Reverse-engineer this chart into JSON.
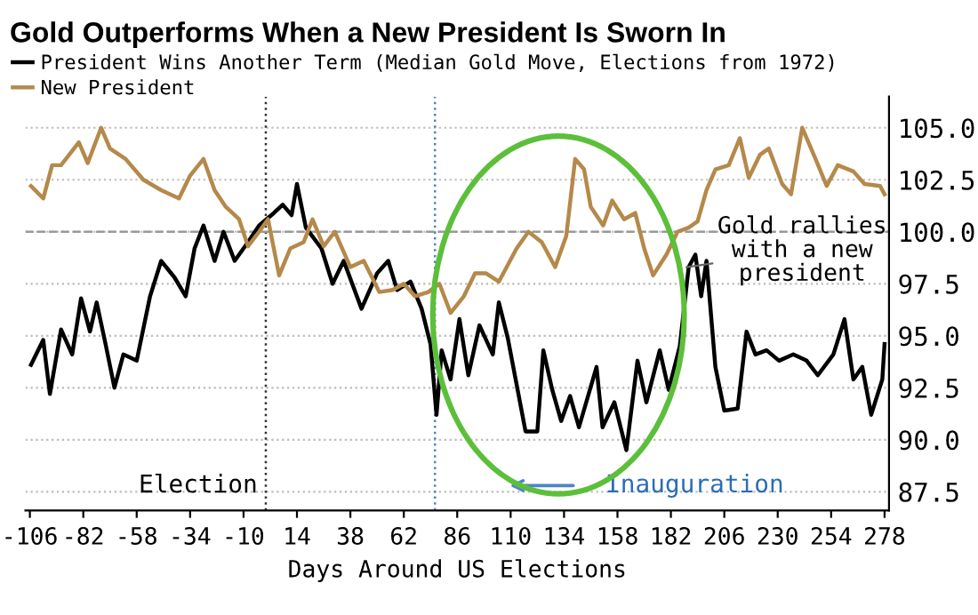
{
  "chart_data": {
    "type": "line",
    "title": "Gold Outperforms When a New President Is Sworn In",
    "xlabel": "Days Around US Elections",
    "xlim": [
      -108,
      280
    ],
    "xticks": [
      -106,
      -82,
      -58,
      -34,
      -10,
      14,
      38,
      62,
      86,
      110,
      134,
      158,
      182,
      206,
      230,
      254,
      278
    ],
    "ylim": [
      86.6,
      106.5
    ],
    "yticks": [
      {
        "value": 87.5,
        "label": "87.5"
      },
      {
        "value": 90,
        "label": "90.0"
      },
      {
        "value": 92.5,
        "label": "92.5"
      },
      {
        "value": 95,
        "label": "95.0"
      },
      {
        "value": 97.5,
        "label": "97.5"
      },
      {
        "value": 100,
        "label": "100.0"
      },
      {
        "value": 102.5,
        "label": "102.5"
      },
      {
        "value": 105,
        "label": "105.0"
      }
    ],
    "grid": "y",
    "legend": "top left",
    "marker": "none",
    "line_style": "solid",
    "series": [
      {
        "name": "President Wins Another Term (Median Gold Move, Elections from 1972)",
        "color": "#000000",
        "x": [
          -105.5,
          -100,
          -97,
          -92,
          -87,
          -83,
          -79,
          -76,
          -72,
          -68,
          -64,
          -58,
          -52,
          -47,
          -41,
          -36,
          -32,
          -28,
          -23,
          -19,
          -14,
          -8,
          -3,
          3.6,
          7.6,
          11.6,
          14,
          18,
          25,
          30,
          35,
          43,
          50,
          55,
          59,
          65,
          70,
          74,
          76.7,
          79,
          83,
          87,
          91,
          96,
          102,
          104.7,
          108.7,
          116.7,
          122,
          124.7,
          128.7,
          132.7,
          136.7,
          140.7,
          148.6,
          151.3,
          156.6,
          162,
          167,
          171,
          177,
          181,
          186,
          190,
          193,
          195.6,
          198,
          202,
          206,
          212,
          216,
          220,
          225,
          230.6,
          237,
          243,
          248,
          255,
          260,
          264,
          268,
          272,
          277,
          278
        ],
        "values": [
          93.6,
          94.8,
          92.2,
          95.3,
          94.1,
          96.8,
          95.2,
          96.6,
          94.6,
          92.5,
          94.1,
          93.8,
          96.9,
          98.6,
          97.8,
          96.9,
          99.2,
          100.3,
          98.6,
          100.0,
          98.6,
          99.5,
          100.3,
          100.9,
          101.3,
          100.8,
          102.3,
          100.2,
          99.2,
          97.5,
          98.6,
          96.3,
          98.0,
          98.6,
          97.2,
          97.6,
          96.3,
          94.6,
          91.2,
          94.3,
          92.9,
          95.8,
          93.1,
          95.5,
          94.1,
          96.6,
          94.9,
          90.4,
          90.4,
          94.3,
          92.4,
          90.9,
          92.1,
          90.6,
          93.5,
          90.6,
          91.8,
          89.5,
          93.8,
          91.8,
          94.3,
          92.4,
          94.5,
          98.3,
          98.9,
          96.9,
          98.6,
          93.5,
          91.4,
          91.5,
          95.2,
          94.1,
          94.3,
          93.8,
          94.1,
          93.8,
          93.1,
          94.1,
          95.8,
          92.9,
          93.5,
          91.2,
          92.9,
          94.6
        ]
      },
      {
        "name": "New President",
        "color": "#b5894a",
        "x": [
          -105.5,
          -100,
          -96,
          -92,
          -84,
          -80,
          -74,
          -70,
          -63,
          -55,
          -47,
          -39,
          -34,
          -28,
          -23,
          -18,
          -12,
          -8,
          -3,
          1,
          6,
          11,
          17,
          21,
          26,
          31,
          38,
          44,
          51,
          57,
          62,
          67,
          73,
          78,
          83,
          89,
          94,
          99,
          104.7,
          112.7,
          118,
          124,
          130,
          135,
          139,
          143,
          146,
          151.6,
          155.6,
          161,
          166,
          170,
          174,
          180,
          185,
          190,
          194,
          198,
          202,
          208,
          213,
          217,
          222,
          226,
          232,
          236,
          241,
          247,
          252,
          257,
          264,
          269,
          276,
          278
        ],
        "values": [
          102.2,
          101.6,
          103.2,
          103.2,
          104.3,
          103.3,
          105.0,
          104.0,
          103.5,
          102.5,
          102.0,
          101.6,
          102.7,
          103.5,
          102.0,
          101.2,
          100.6,
          99.3,
          100.0,
          100.6,
          97.9,
          99.2,
          99.5,
          100.6,
          99.3,
          100.0,
          98.3,
          98.6,
          97.1,
          97.2,
          97.5,
          96.9,
          97.1,
          97.5,
          96.1,
          96.9,
          98.0,
          98.0,
          97.6,
          99.2,
          100.0,
          99.5,
          98.3,
          99.8,
          103.5,
          103.0,
          101.2,
          100.3,
          101.5,
          100.6,
          100.9,
          99.2,
          97.9,
          98.9,
          100.0,
          100.2,
          100.5,
          102.0,
          103.0,
          103.2,
          104.5,
          102.6,
          103.7,
          104.0,
          102.3,
          101.8,
          105.0,
          103.5,
          102.2,
          103.2,
          102.9,
          102.3,
          102.2,
          101.8
        ]
      }
    ],
    "ref_lines": [
      {
        "axis": "x",
        "value": 0,
        "color": "#333333",
        "line_style": "dotted"
      },
      {
        "axis": "x",
        "value": 76,
        "color": "#4a86c8",
        "line_style": "dotted"
      },
      {
        "axis": "y",
        "value": 100,
        "color": "#999999",
        "line_style": "dashed"
      }
    ],
    "annotations": [
      "Election",
      "Inauguration",
      {
        "text": "Gold rallies\nwith a new\npresident",
        "x": 189,
        "y": 98.3
      }
    ]
  }
}
